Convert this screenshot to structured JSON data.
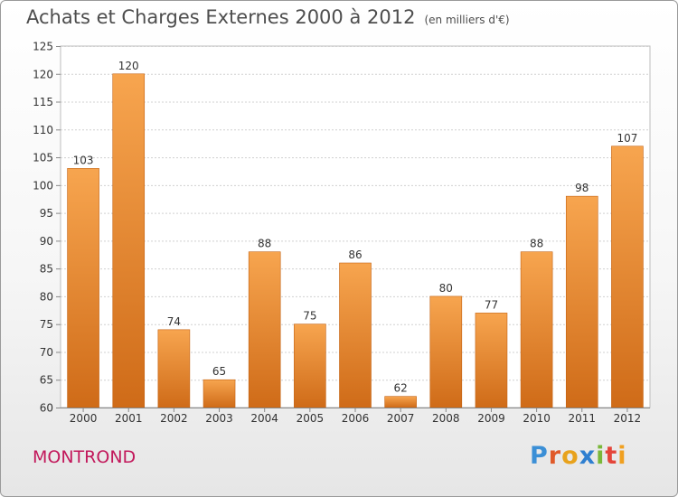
{
  "title": {
    "main": "Achats et Charges Externes 2000 à 2012",
    "unit": "(en milliers d'€)"
  },
  "commune": "MONTROND",
  "logo": {
    "text": "Proxiti",
    "letters": [
      {
        "char": "P",
        "color": "#3b8fd6"
      },
      {
        "char": "r",
        "color": "#e05a2a"
      },
      {
        "char": "o",
        "color": "#e8a21c"
      },
      {
        "char": "x",
        "color": "#2f7fd0"
      },
      {
        "char": "i",
        "color": "#7ab83a"
      },
      {
        "char": "t",
        "color": "#e4453a"
      },
      {
        "char": "i",
        "color": "#f0a020"
      }
    ]
  },
  "colors": {
    "bar_light": "#f7a54f",
    "bar_dark": "#cf6b18",
    "grid": "#d0d0d0",
    "axis_text": "#333333"
  },
  "chart_data": {
    "type": "bar",
    "title": "Achats et Charges Externes 2000 à 2012",
    "unit_label": "(en milliers d'€)",
    "categories": [
      "2000",
      "2001",
      "2002",
      "2003",
      "2004",
      "2005",
      "2006",
      "2007",
      "2008",
      "2009",
      "2010",
      "2011",
      "2012"
    ],
    "values": [
      103,
      120,
      74,
      65,
      88,
      75,
      86,
      62,
      80,
      77,
      88,
      98,
      107
    ],
    "ylim": [
      60,
      125
    ],
    "yticks": [
      60,
      65,
      70,
      75,
      80,
      85,
      90,
      95,
      100,
      105,
      110,
      115,
      120,
      125
    ],
    "grid": true,
    "data_labels": true
  }
}
